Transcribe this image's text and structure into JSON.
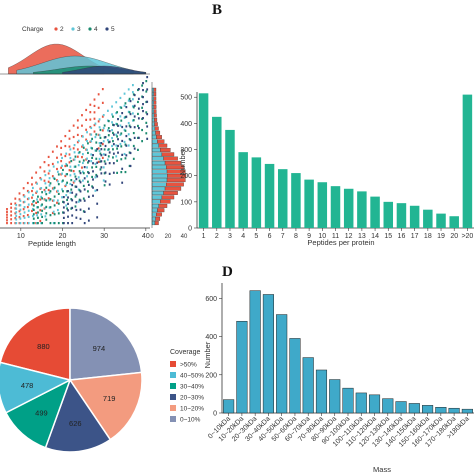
{
  "panels": {
    "b_letter": "B",
    "d_letter": "D"
  },
  "colors": {
    "teal": "#22b593",
    "steel": "#3fa9c9",
    "charge2": "#e8533f",
    "charge3": "#5ec6d8",
    "charge4": "#1a8a6e",
    "charge5": "#31457a",
    "pie": [
      "#e64b35",
      "#4dbbd5",
      "#00a087",
      "#3c5488",
      "#f39b7f",
      "#8491b4"
    ]
  },
  "chart_data": [
    {
      "id": "panel-a",
      "type": "scatter",
      "title": "",
      "xlabel": "Peptide length",
      "ylabel": "",
      "xlim": [
        5,
        41
      ],
      "x_ticks": [
        "10",
        "20",
        "30",
        "40"
      ],
      "legend": {
        "title": "Charge",
        "labels": [
          "2",
          "3",
          "4",
          "5"
        ],
        "placement": "top"
      },
      "series": [
        {
          "name": "2",
          "length_range": [
            7,
            30
          ]
        },
        {
          "name": "3",
          "length_range": [
            9,
            37
          ]
        },
        {
          "name": "4",
          "length_range": [
            13,
            40
          ]
        },
        {
          "name": "5",
          "length_range": [
            20,
            40
          ]
        }
      ],
      "top_histogram": true,
      "right_histogram_ticks": [
        "0",
        "20",
        "40"
      ]
    },
    {
      "id": "panel-b",
      "type": "bar",
      "title": "",
      "xlabel": "Peptides per protein",
      "ylabel": "Number",
      "ylim": [
        0,
        520
      ],
      "y_ticks": [
        0,
        100,
        200,
        300,
        400,
        500
      ],
      "categories": [
        "1",
        "2",
        "3",
        "4",
        "5",
        "6",
        "7",
        "8",
        "9",
        "10",
        "11",
        "12",
        "13",
        "14",
        "15",
        "16",
        "17",
        "18",
        "19",
        "20",
        ">20"
      ],
      "values": [
        515,
        425,
        375,
        290,
        270,
        245,
        225,
        210,
        185,
        175,
        160,
        150,
        140,
        120,
        100,
        95,
        85,
        70,
        55,
        45,
        510
      ]
    },
    {
      "id": "panel-c",
      "type": "pie",
      "title": "",
      "legend": {
        "title": "Coverage",
        "placement": "right"
      },
      "slices": [
        {
          "label": ">50%",
          "value": 880
        },
        {
          "label": "40~50%",
          "value": 478
        },
        {
          "label": "30~40%",
          "value": 499
        },
        {
          "label": "20~30%",
          "value": 626
        },
        {
          "label": "10~20%",
          "value": 719
        },
        {
          "label": "0~10%",
          "value": 974
        }
      ]
    },
    {
      "id": "panel-d",
      "type": "bar",
      "title": "",
      "xlabel": "Mass",
      "ylabel": "Number",
      "ylim": [
        0,
        680
      ],
      "y_ticks": [
        0,
        200,
        400,
        600
      ],
      "categories": [
        "0~10kDa",
        "10~20kDa",
        "20~30kDa",
        "30~40kDa",
        "40~50kDa",
        "50~60kDa",
        "60~70kDa",
        "70~80kDa",
        "80~90kDa",
        "90~100kDa",
        "100~110kDa",
        "110~120kDa",
        "120~130kDa",
        "130~140kDa",
        "140~150kDa",
        "150~160kDa",
        "160~170kDa",
        "170~180kDa",
        ">180kDa"
      ],
      "values": [
        70,
        480,
        640,
        620,
        515,
        390,
        290,
        225,
        175,
        130,
        105,
        95,
        75,
        60,
        50,
        40,
        30,
        25,
        20
      ]
    }
  ]
}
